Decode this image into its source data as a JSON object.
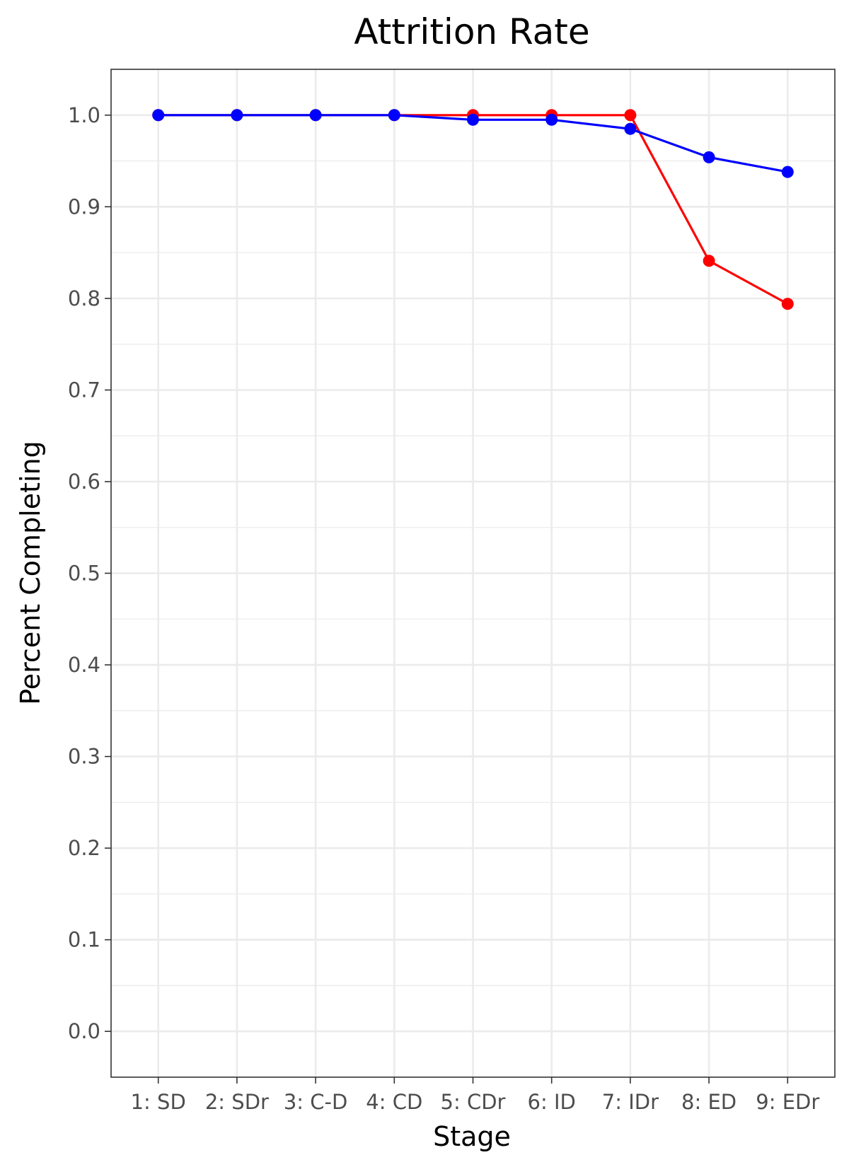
{
  "chart_data": {
    "type": "line",
    "title": "Attrition Rate",
    "xlabel": "Stage",
    "ylabel": "Percent Completing",
    "categories": [
      "1: SD",
      "2: SDr",
      "3: C-D",
      "4: CD",
      "5: CDr",
      "6: ID",
      "7: IDr",
      "8: ED",
      "9: EDr"
    ],
    "yticks": [
      "0.0",
      "0.1",
      "0.2",
      "0.3",
      "0.4",
      "0.5",
      "0.6",
      "0.7",
      "0.8",
      "0.9",
      "1.0"
    ],
    "ylim": [
      -0.05,
      1.05
    ],
    "grid": true,
    "legend": "none",
    "series": [
      {
        "name": "red",
        "color": "#ff0000",
        "values": [
          1.0,
          1.0,
          1.0,
          1.0,
          1.0,
          1.0,
          1.0,
          0.841,
          0.794
        ]
      },
      {
        "name": "blue",
        "color": "#0000ff",
        "values": [
          1.0,
          1.0,
          1.0,
          1.0,
          0.995,
          0.995,
          0.985,
          0.954,
          0.938
        ]
      }
    ]
  }
}
